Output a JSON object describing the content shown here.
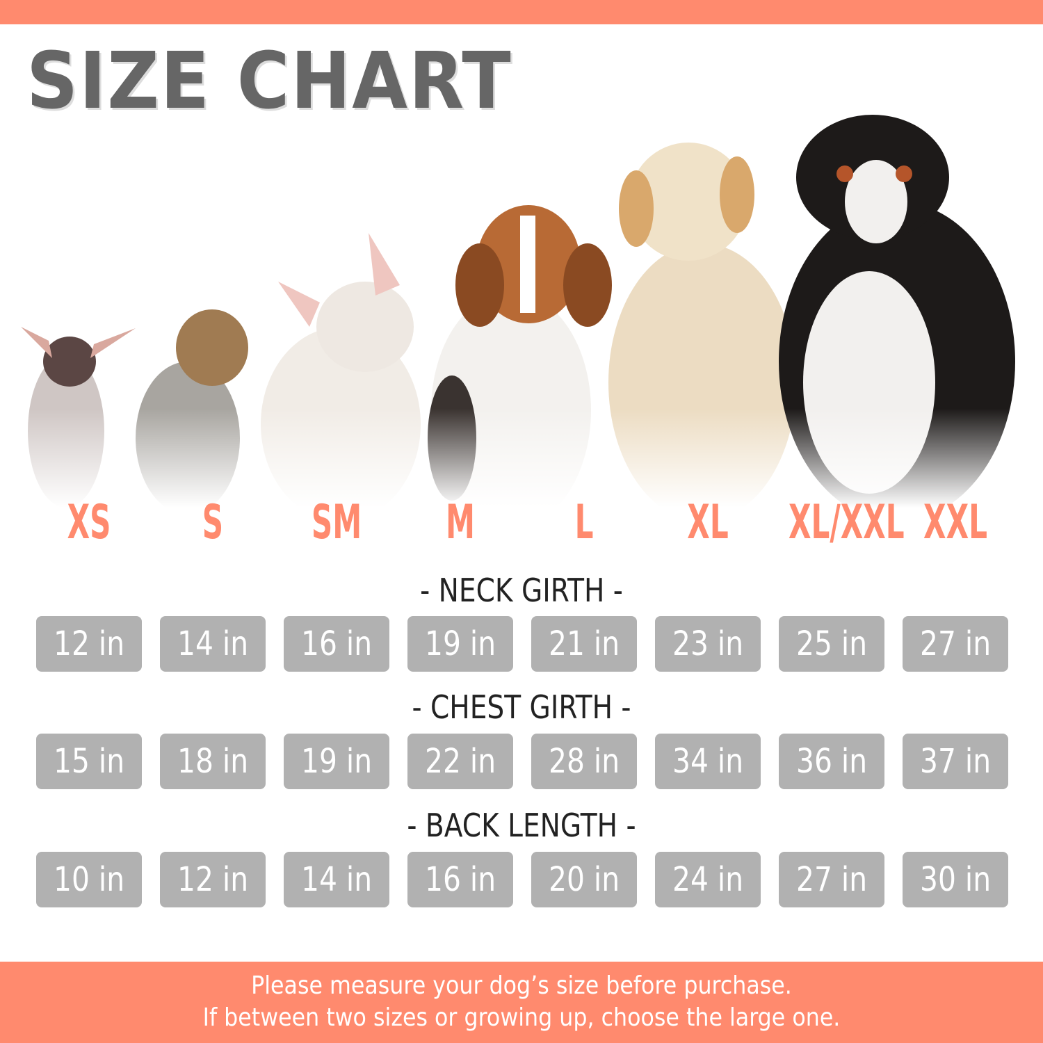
{
  "title": "SIZE CHART",
  "colors": {
    "accent": "#FF8A6E",
    "box": "#B1B1B1",
    "title": "#666666"
  },
  "sizes": [
    "XS",
    "S",
    "SM",
    "M",
    "L",
    "XL",
    "XL/XXL",
    "XXL"
  ],
  "measurements": [
    {
      "heading": "- NECK GIRTH -",
      "values": [
        "12 in",
        "14 in",
        "16 in",
        "19 in",
        "21 in",
        "23 in",
        "25 in",
        "27 in"
      ]
    },
    {
      "heading": "- CHEST GIRTH -",
      "values": [
        "15 in",
        "18 in",
        "19 in",
        "22 in",
        "28 in",
        "34 in",
        "36 in",
        "37 in"
      ]
    },
    {
      "heading": "- BACK LENGTH -",
      "values": [
        "10 in",
        "12 in",
        "14 in",
        "16 in",
        "20 in",
        "24 in",
        "27 in",
        "30 in"
      ]
    }
  ],
  "footer": {
    "line1": "Please measure your dog’s size before purchase.",
    "line2": "If between two sizes or growing up, choose the large one."
  },
  "images": [
    "chihuahua",
    "yorkshire-terrier",
    "french-bulldog",
    "beagle",
    "golden-retriever",
    "bernese-mountain-dog"
  ]
}
